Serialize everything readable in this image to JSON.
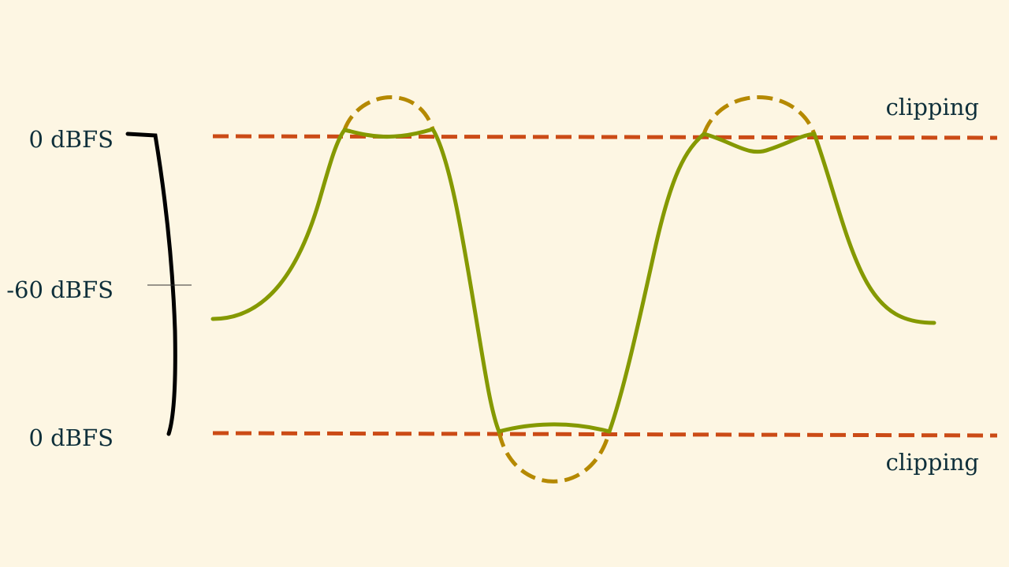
{
  "labels": {
    "top_level": "0 dBFS",
    "mid_level": "-60 dBFS",
    "bottom_level": "0 dBFS",
    "clip_top": "clipping",
    "clip_bottom": "clipping"
  },
  "colors": {
    "background": "#fdf6e3",
    "clip_line": "#cb4b16",
    "clipped_wave": "#859900",
    "ideal_wave": "#b58900",
    "bracket": "#000000",
    "text": "#0e2f3a"
  }
}
